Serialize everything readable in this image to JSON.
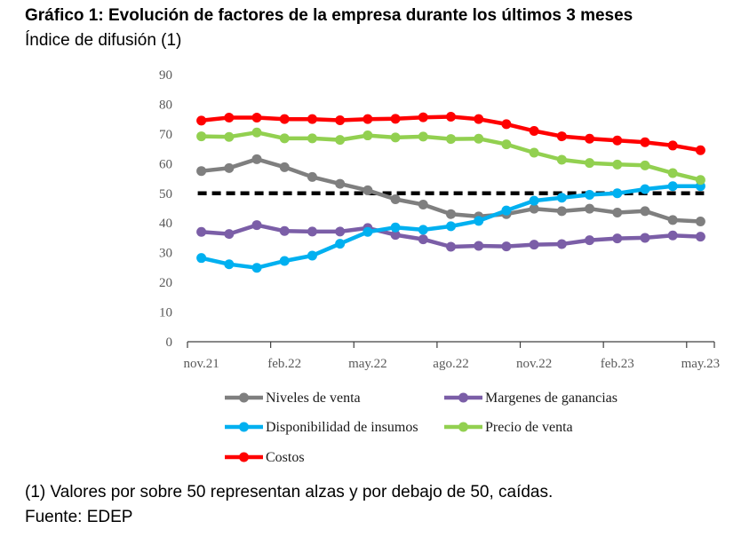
{
  "header": {
    "title": "Gráfico 1: Evolución de factores de la empresa durante los últimos 3 meses",
    "subtitle": "Índice de difusión (1)"
  },
  "footer": {
    "note": "(1) Valores por sobre 50 representan alzas y por debajo de 50, caídas.",
    "source": "Fuente: EDEP"
  },
  "chart_data": {
    "type": "line",
    "title": "Gráfico 1: Evolución de factores de la empresa durante los últimos 3 meses",
    "ylabel": "Índice de difusión (1)",
    "xlabel": "",
    "ylim": [
      0,
      90
    ],
    "yticks": [
      "0",
      "10",
      "20",
      "30",
      "40",
      "50",
      "60",
      "70",
      "80",
      "90"
    ],
    "x": [
      "nov.21",
      "dic.21",
      "ene.22",
      "feb.22",
      "mar.22",
      "abr.22",
      "may.22",
      "jun.22",
      "jul.22",
      "ago.22",
      "sep.22",
      "oct.22",
      "nov.22",
      "dic.22",
      "ene.23",
      "feb.23",
      "mar.23",
      "abr.23",
      "may.23"
    ],
    "xtick_labels": [
      "nov.21",
      "feb.22",
      "may.22",
      "ago.22",
      "nov.22",
      "feb.23",
      "may.23"
    ],
    "reference_line": {
      "value": 50,
      "color": "#000000",
      "style": "dashed"
    },
    "series": [
      {
        "name": "Niveles de venta",
        "color": "#7f7f7f",
        "values": [
          57.5,
          58.5,
          61.5,
          58.8,
          55.5,
          53.2,
          51.0,
          48.0,
          46.2,
          43.0,
          42.2,
          43.0,
          44.8,
          44.0,
          44.8,
          43.5,
          44.0,
          41.0,
          40.5
        ]
      },
      {
        "name": "Margenes de ganancias",
        "color": "#7b5ea7",
        "values": [
          37.0,
          36.3,
          39.3,
          37.3,
          37.1,
          37.1,
          38.3,
          36.0,
          34.5,
          32.0,
          32.3,
          32.1,
          32.7,
          32.9,
          34.2,
          34.8,
          35.0,
          35.8,
          35.4
        ]
      },
      {
        "name": "Disponibilidad de insumos",
        "color": "#00b0f0",
        "values": [
          28.2,
          26.1,
          24.9,
          27.2,
          29.0,
          33.0,
          37.0,
          38.5,
          37.7,
          38.9,
          40.7,
          44.2,
          47.5,
          48.5,
          49.5,
          50.0,
          51.4,
          52.4,
          52.4
        ]
      },
      {
        "name": "Precio de venta",
        "color": "#92d050",
        "values": [
          69.2,
          69.0,
          70.5,
          68.5,
          68.5,
          68.0,
          69.5,
          68.8,
          69.1,
          68.3,
          68.4,
          66.5,
          63.7,
          61.3,
          60.2,
          59.7,
          59.4,
          56.8,
          54.5
        ]
      },
      {
        "name": "Costos",
        "color": "#ff0000",
        "values": [
          74.5,
          75.5,
          75.5,
          75.0,
          75.0,
          74.6,
          75.0,
          75.1,
          75.6,
          75.8,
          75.0,
          73.3,
          71.0,
          69.2,
          68.4,
          67.8,
          67.2,
          66.1,
          64.5
        ]
      }
    ],
    "legend": [
      "Niveles de venta",
      "Margenes de ganancias",
      "Disponibilidad de insumos",
      "Precio de venta",
      "Costos"
    ],
    "legend_position": "bottom",
    "grid": false
  }
}
